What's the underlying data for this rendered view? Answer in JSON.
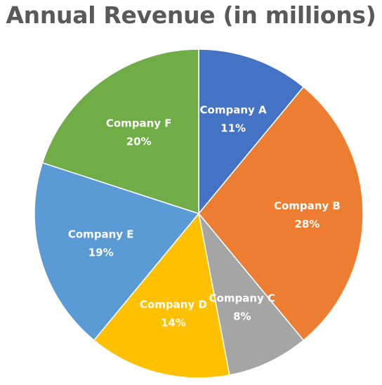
{
  "chart_data": {
    "type": "pie",
    "title": "Annual Revenue (in millions)",
    "slices": [
      {
        "category": "Company A",
        "value": 11,
        "label": "11%",
        "color": "#4472C4"
      },
      {
        "category": "Company B",
        "value": 28,
        "label": "28%",
        "color": "#ED7D31"
      },
      {
        "category": "Company C",
        "value": 8,
        "label": "8%",
        "color": "#A5A5A5"
      },
      {
        "category": "Company D",
        "value": 14,
        "label": "14%",
        "color": "#FFC000"
      },
      {
        "category": "Company E",
        "value": 19,
        "label": "19%",
        "color": "#5B9BD5"
      },
      {
        "category": "Company F",
        "value": 20,
        "label": "20%",
        "color": "#70AD47"
      }
    ],
    "start_angle_deg": 0,
    "direction": "clockwise",
    "data_labels": "inside",
    "legend": "none"
  }
}
